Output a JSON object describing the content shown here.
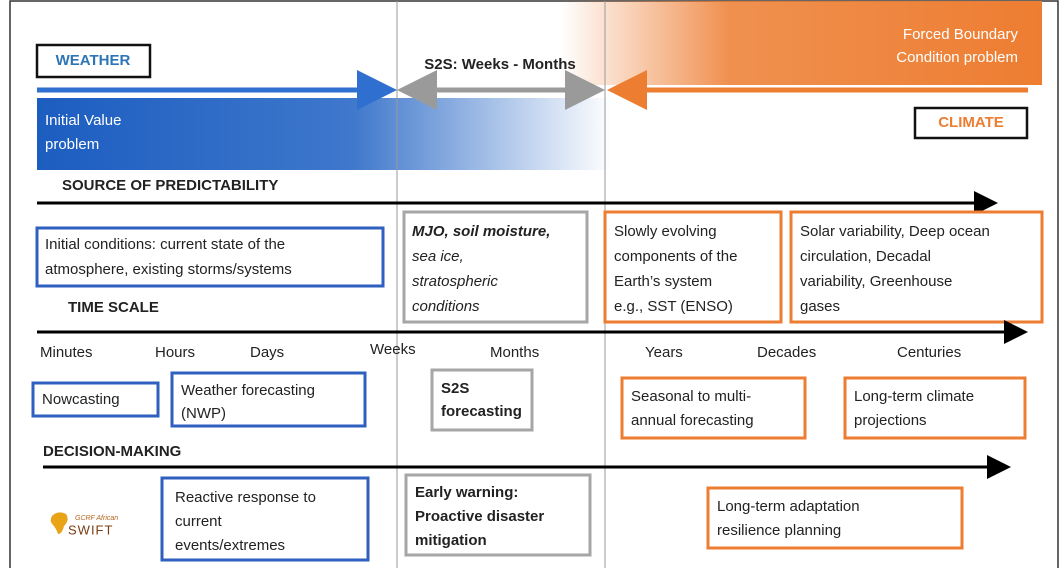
{
  "header": {
    "weather": "WEATHER",
    "s2s": "S2S: Weeks - Months",
    "forced": [
      "Forced Boundary",
      "Condition problem"
    ],
    "initial_value": [
      "Initial Value",
      "problem"
    ],
    "climate": "CLIMATE"
  },
  "sections": {
    "source": "SOURCE OF PREDICTABILITY",
    "time_scale": "TIME SCALE",
    "decision": "DECISION-MAKING"
  },
  "predictability": [
    [
      "Initial conditions: current state of the",
      "atmosphere, existing storms/systems"
    ],
    [
      "MJO, soil moisture,",
      "sea ice,",
      "stratospheric",
      "conditions"
    ],
    [
      "Slowly evolving",
      "components of the",
      "Earth’s system",
      "e.g., SST (ENSO)"
    ],
    [
      "Solar variability, Deep ocean",
      "circulation, Decadal",
      "variability, Greenhouse",
      "gases"
    ]
  ],
  "time_labels": [
    "Minutes",
    "Hours",
    "Days",
    "Weeks",
    "Months",
    "Years",
    "Decades",
    "Centuries"
  ],
  "forecasting": [
    [
      "Nowcasting"
    ],
    [
      "Weather forecasting",
      "(NWP)"
    ],
    [
      "S2S",
      "forecasting"
    ],
    [
      "Seasonal to multi-",
      "annual forecasting"
    ],
    [
      "Long-term climate",
      "projections"
    ]
  ],
  "decisions": [
    [
      "Reactive response to",
      "current",
      "events/extremes"
    ],
    [
      "Early warning:",
      "Proactive disaster",
      "mitigation"
    ],
    [
      "Long-term adaptation",
      "resilience planning"
    ]
  ],
  "logo": {
    "org": "GCRF African",
    "name": "SWIFT"
  }
}
